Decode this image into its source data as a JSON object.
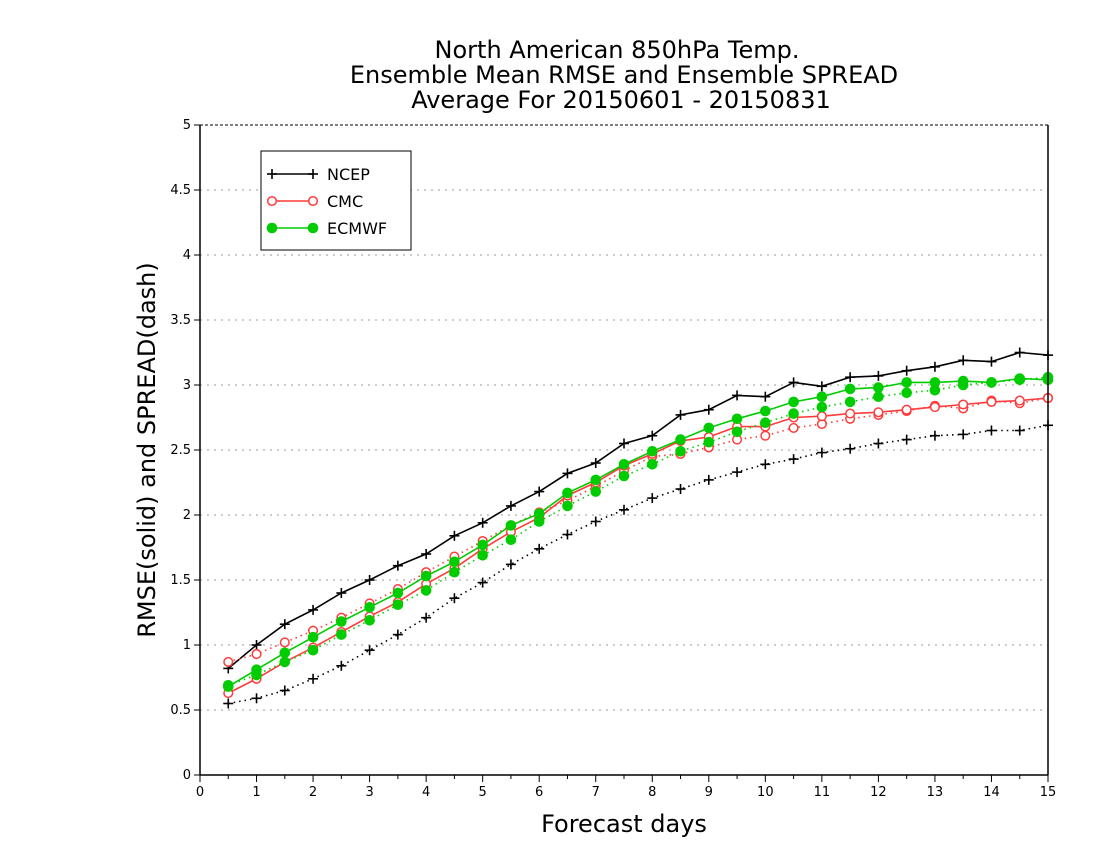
{
  "chart_data": {
    "type": "line",
    "title": [
      "North American 850hPa Temp.",
      "Ensemble Mean RMSE and Ensemble SPREAD",
      "Average For 20150601 - 20150831"
    ],
    "xlabel": "Forecast days",
    "ylabel": "RMSE(solid) and SPREAD(dash)",
    "xlim": [
      0,
      15
    ],
    "ylim": [
      0,
      5
    ],
    "xticks": [
      "0",
      "1",
      "2",
      "3",
      "4",
      "5",
      "6",
      "7",
      "8",
      "9",
      "10",
      "11",
      "12",
      "13",
      "14",
      "15"
    ],
    "yticks": [
      "0",
      "0.5",
      "1",
      "1.5",
      "2",
      "2.5",
      "3",
      "3.5",
      "4",
      "4.5",
      "5"
    ],
    "grid": true,
    "legend_position": "top-left",
    "x": [
      0.5,
      1,
      1.5,
      2,
      2.5,
      3,
      3.5,
      4,
      4.5,
      5,
      5.5,
      6,
      6.5,
      7,
      7.5,
      8,
      8.5,
      9,
      9.5,
      10,
      10.5,
      11,
      11.5,
      12,
      12.5,
      13,
      13.5,
      14,
      14.5,
      15
    ],
    "series": [
      {
        "name": "NCEP",
        "color": "#000000",
        "marker": "plus",
        "rmse": [
          0.82,
          1.0,
          1.16,
          1.27,
          1.4,
          1.5,
          1.61,
          1.7,
          1.84,
          1.94,
          2.07,
          2.18,
          2.32,
          2.4,
          2.55,
          2.61,
          2.77,
          2.81,
          2.92,
          2.91,
          3.02,
          2.99,
          3.06,
          3.07,
          3.11,
          3.14,
          3.19,
          3.18,
          3.25,
          3.23
        ],
        "spread": [
          0.55,
          0.59,
          0.65,
          0.74,
          0.84,
          0.96,
          1.08,
          1.21,
          1.36,
          1.48,
          1.62,
          1.74,
          1.85,
          1.95,
          2.04,
          2.13,
          2.2,
          2.27,
          2.33,
          2.39,
          2.43,
          2.48,
          2.51,
          2.55,
          2.58,
          2.61,
          2.62,
          2.65,
          2.65,
          2.69
        ]
      },
      {
        "name": "CMC",
        "color": "#ff3c3c",
        "marker": "circle-open",
        "rmse": [
          0.63,
          0.74,
          0.87,
          0.98,
          1.1,
          1.22,
          1.33,
          1.47,
          1.59,
          1.74,
          1.87,
          1.98,
          2.15,
          2.25,
          2.38,
          2.47,
          2.57,
          2.6,
          2.68,
          2.68,
          2.75,
          2.76,
          2.78,
          2.79,
          2.81,
          2.83,
          2.85,
          2.87,
          2.88,
          2.9
        ],
        "spread": [
          0.87,
          0.93,
          1.02,
          1.11,
          1.21,
          1.32,
          1.43,
          1.56,
          1.68,
          1.8,
          1.92,
          2.02,
          2.11,
          2.22,
          2.34,
          2.45,
          2.47,
          2.52,
          2.58,
          2.61,
          2.67,
          2.7,
          2.74,
          2.77,
          2.8,
          2.84,
          2.82,
          2.88,
          2.86,
          2.9
        ]
      },
      {
        "name": "ECMWF",
        "color": "#00cc00",
        "marker": "circle-filled",
        "rmse": [
          0.68,
          0.81,
          0.94,
          1.06,
          1.18,
          1.29,
          1.4,
          1.53,
          1.64,
          1.77,
          1.92,
          2.01,
          2.17,
          2.27,
          2.39,
          2.49,
          2.58,
          2.67,
          2.74,
          2.8,
          2.87,
          2.91,
          2.97,
          2.98,
          3.02,
          3.02,
          3.03,
          3.02,
          3.05,
          3.04
        ],
        "spread": [
          0.69,
          0.77,
          0.87,
          0.96,
          1.08,
          1.19,
          1.31,
          1.42,
          1.56,
          1.69,
          1.81,
          1.95,
          2.07,
          2.18,
          2.3,
          2.39,
          2.49,
          2.56,
          2.64,
          2.71,
          2.78,
          2.83,
          2.87,
          2.91,
          2.94,
          2.96,
          3.0,
          3.02,
          3.04,
          3.06
        ]
      }
    ]
  }
}
